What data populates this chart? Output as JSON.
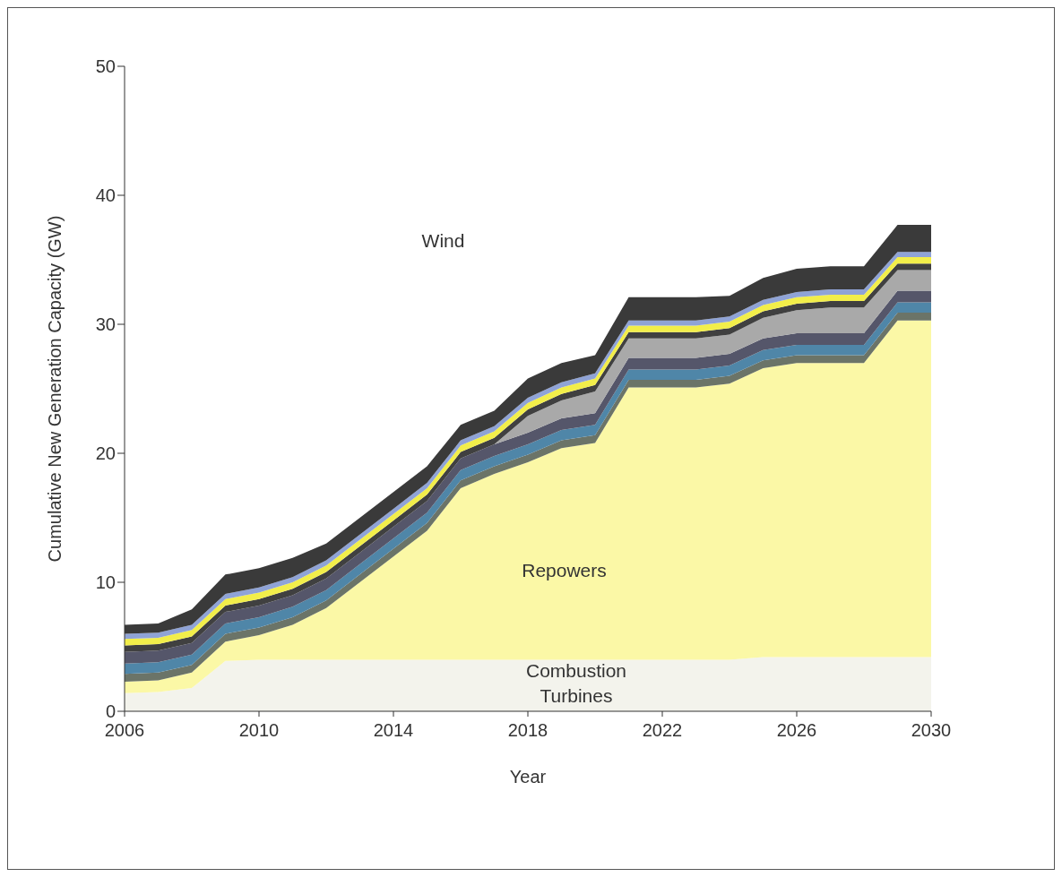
{
  "chart_data": {
    "type": "area",
    "stacked": true,
    "xlabel": "Year",
    "ylabel": "Cumulative New Generation Capacity (GW)",
    "x": [
      2006,
      2007,
      2008,
      2009,
      2010,
      2011,
      2012,
      2013,
      2014,
      2015,
      2016,
      2017,
      2018,
      2019,
      2020,
      2021,
      2022,
      2023,
      2024,
      2025,
      2026,
      2027,
      2028,
      2029,
      2030
    ],
    "xlim": [
      2006,
      2030
    ],
    "xticks": [
      2006,
      2010,
      2014,
      2018,
      2022,
      2026,
      2030
    ],
    "ylim": [
      0,
      50
    ],
    "yticks": [
      0,
      10,
      20,
      30,
      40,
      50
    ],
    "series": [
      {
        "color": "#f3f3ec",
        "values": [
          1.4,
          1.5,
          1.8,
          3.9,
          4,
          4,
          4,
          4,
          4,
          4,
          4,
          4,
          4,
          4,
          4,
          4,
          4,
          4,
          4,
          4.2,
          4.2,
          4.2,
          4.2,
          4.2,
          4.2
        ]
      },
      {
        "color": "#fbf8a6",
        "values": [
          0.9,
          0.9,
          1.2,
          1.5,
          1.9,
          2.7,
          4,
          6,
          8,
          10,
          13.3,
          14.4,
          15.3,
          16.4,
          16.8,
          21.1,
          21.1,
          21.1,
          21.4,
          22.4,
          22.8,
          22.8,
          22.8,
          26.1,
          26.1
        ]
      },
      {
        "color": "#6b7468",
        "values": [
          0.6,
          0.6,
          0.6,
          0.6,
          0.6,
          0.6,
          0.6,
          0.6,
          0.6,
          0.6,
          0.6,
          0.6,
          0.6,
          0.6,
          0.6,
          0.6,
          0.6,
          0.6,
          0.6,
          0.6,
          0.6,
          0.6,
          0.6,
          0.6,
          0.6
        ]
      },
      {
        "color": "#4f86a8",
        "values": [
          0.8,
          0.8,
          0.8,
          0.8,
          0.8,
          0.8,
          0.8,
          0.8,
          0.8,
          0.8,
          0.8,
          0.8,
          0.8,
          0.8,
          0.8,
          0.8,
          0.8,
          0.8,
          0.8,
          0.8,
          0.8,
          0.8,
          0.8,
          0.8,
          0.8
        ]
      },
      {
        "color": "#55566a",
        "values": [
          0.9,
          0.9,
          0.9,
          0.9,
          0.9,
          0.9,
          0.9,
          0.9,
          0.9,
          0.9,
          0.9,
          0.9,
          0.9,
          0.9,
          0.9,
          0.9,
          0.9,
          0.9,
          0.9,
          0.9,
          0.9,
          0.9,
          0.9,
          0.9,
          0.9
        ]
      },
      {
        "color": "#a9a9a9",
        "values": [
          0,
          0,
          0,
          0,
          0,
          0,
          0,
          0,
          0,
          0,
          0,
          0,
          1.3,
          1.4,
          1.7,
          1.5,
          1.5,
          1.5,
          1.5,
          1.6,
          1.8,
          2,
          2,
          1.6,
          1.6
        ]
      },
      {
        "color": "#404040",
        "values": [
          0.5,
          0.5,
          0.5,
          0.5,
          0.5,
          0.5,
          0.5,
          0.5,
          0.5,
          0.5,
          0.5,
          0.5,
          0.5,
          0.5,
          0.5,
          0.5,
          0.5,
          0.5,
          0.5,
          0.5,
          0.5,
          0.5,
          0.5,
          0.5,
          0.5
        ]
      },
      {
        "color": "#f2ee4a",
        "values": [
          0.5,
          0.5,
          0.5,
          0.5,
          0.5,
          0.5,
          0.5,
          0.5,
          0.5,
          0.5,
          0.5,
          0.5,
          0.5,
          0.5,
          0.5,
          0.5,
          0.5,
          0.5,
          0.5,
          0.5,
          0.5,
          0.5,
          0.5,
          0.5,
          0.5
        ]
      },
      {
        "color": "#8fa3d6",
        "values": [
          0.4,
          0.4,
          0.4,
          0.4,
          0.4,
          0.4,
          0.4,
          0.4,
          0.4,
          0.4,
          0.4,
          0.4,
          0.4,
          0.4,
          0.4,
          0.4,
          0.4,
          0.4,
          0.4,
          0.4,
          0.4,
          0.4,
          0.4,
          0.4,
          0.4
        ]
      },
      {
        "color": "#3a3a3a",
        "values": [
          0.7,
          0.7,
          1.2,
          1.5,
          1.5,
          1.5,
          1.3,
          1.3,
          1.3,
          1.3,
          1.2,
          1.2,
          1.5,
          1.5,
          1.4,
          1.8,
          1.8,
          1.8,
          1.6,
          1.7,
          1.8,
          1.8,
          1.8,
          2.1,
          2.1
        ]
      }
    ],
    "annotations": [
      "Wind",
      "Repowers",
      "Combustion Turbines"
    ]
  }
}
